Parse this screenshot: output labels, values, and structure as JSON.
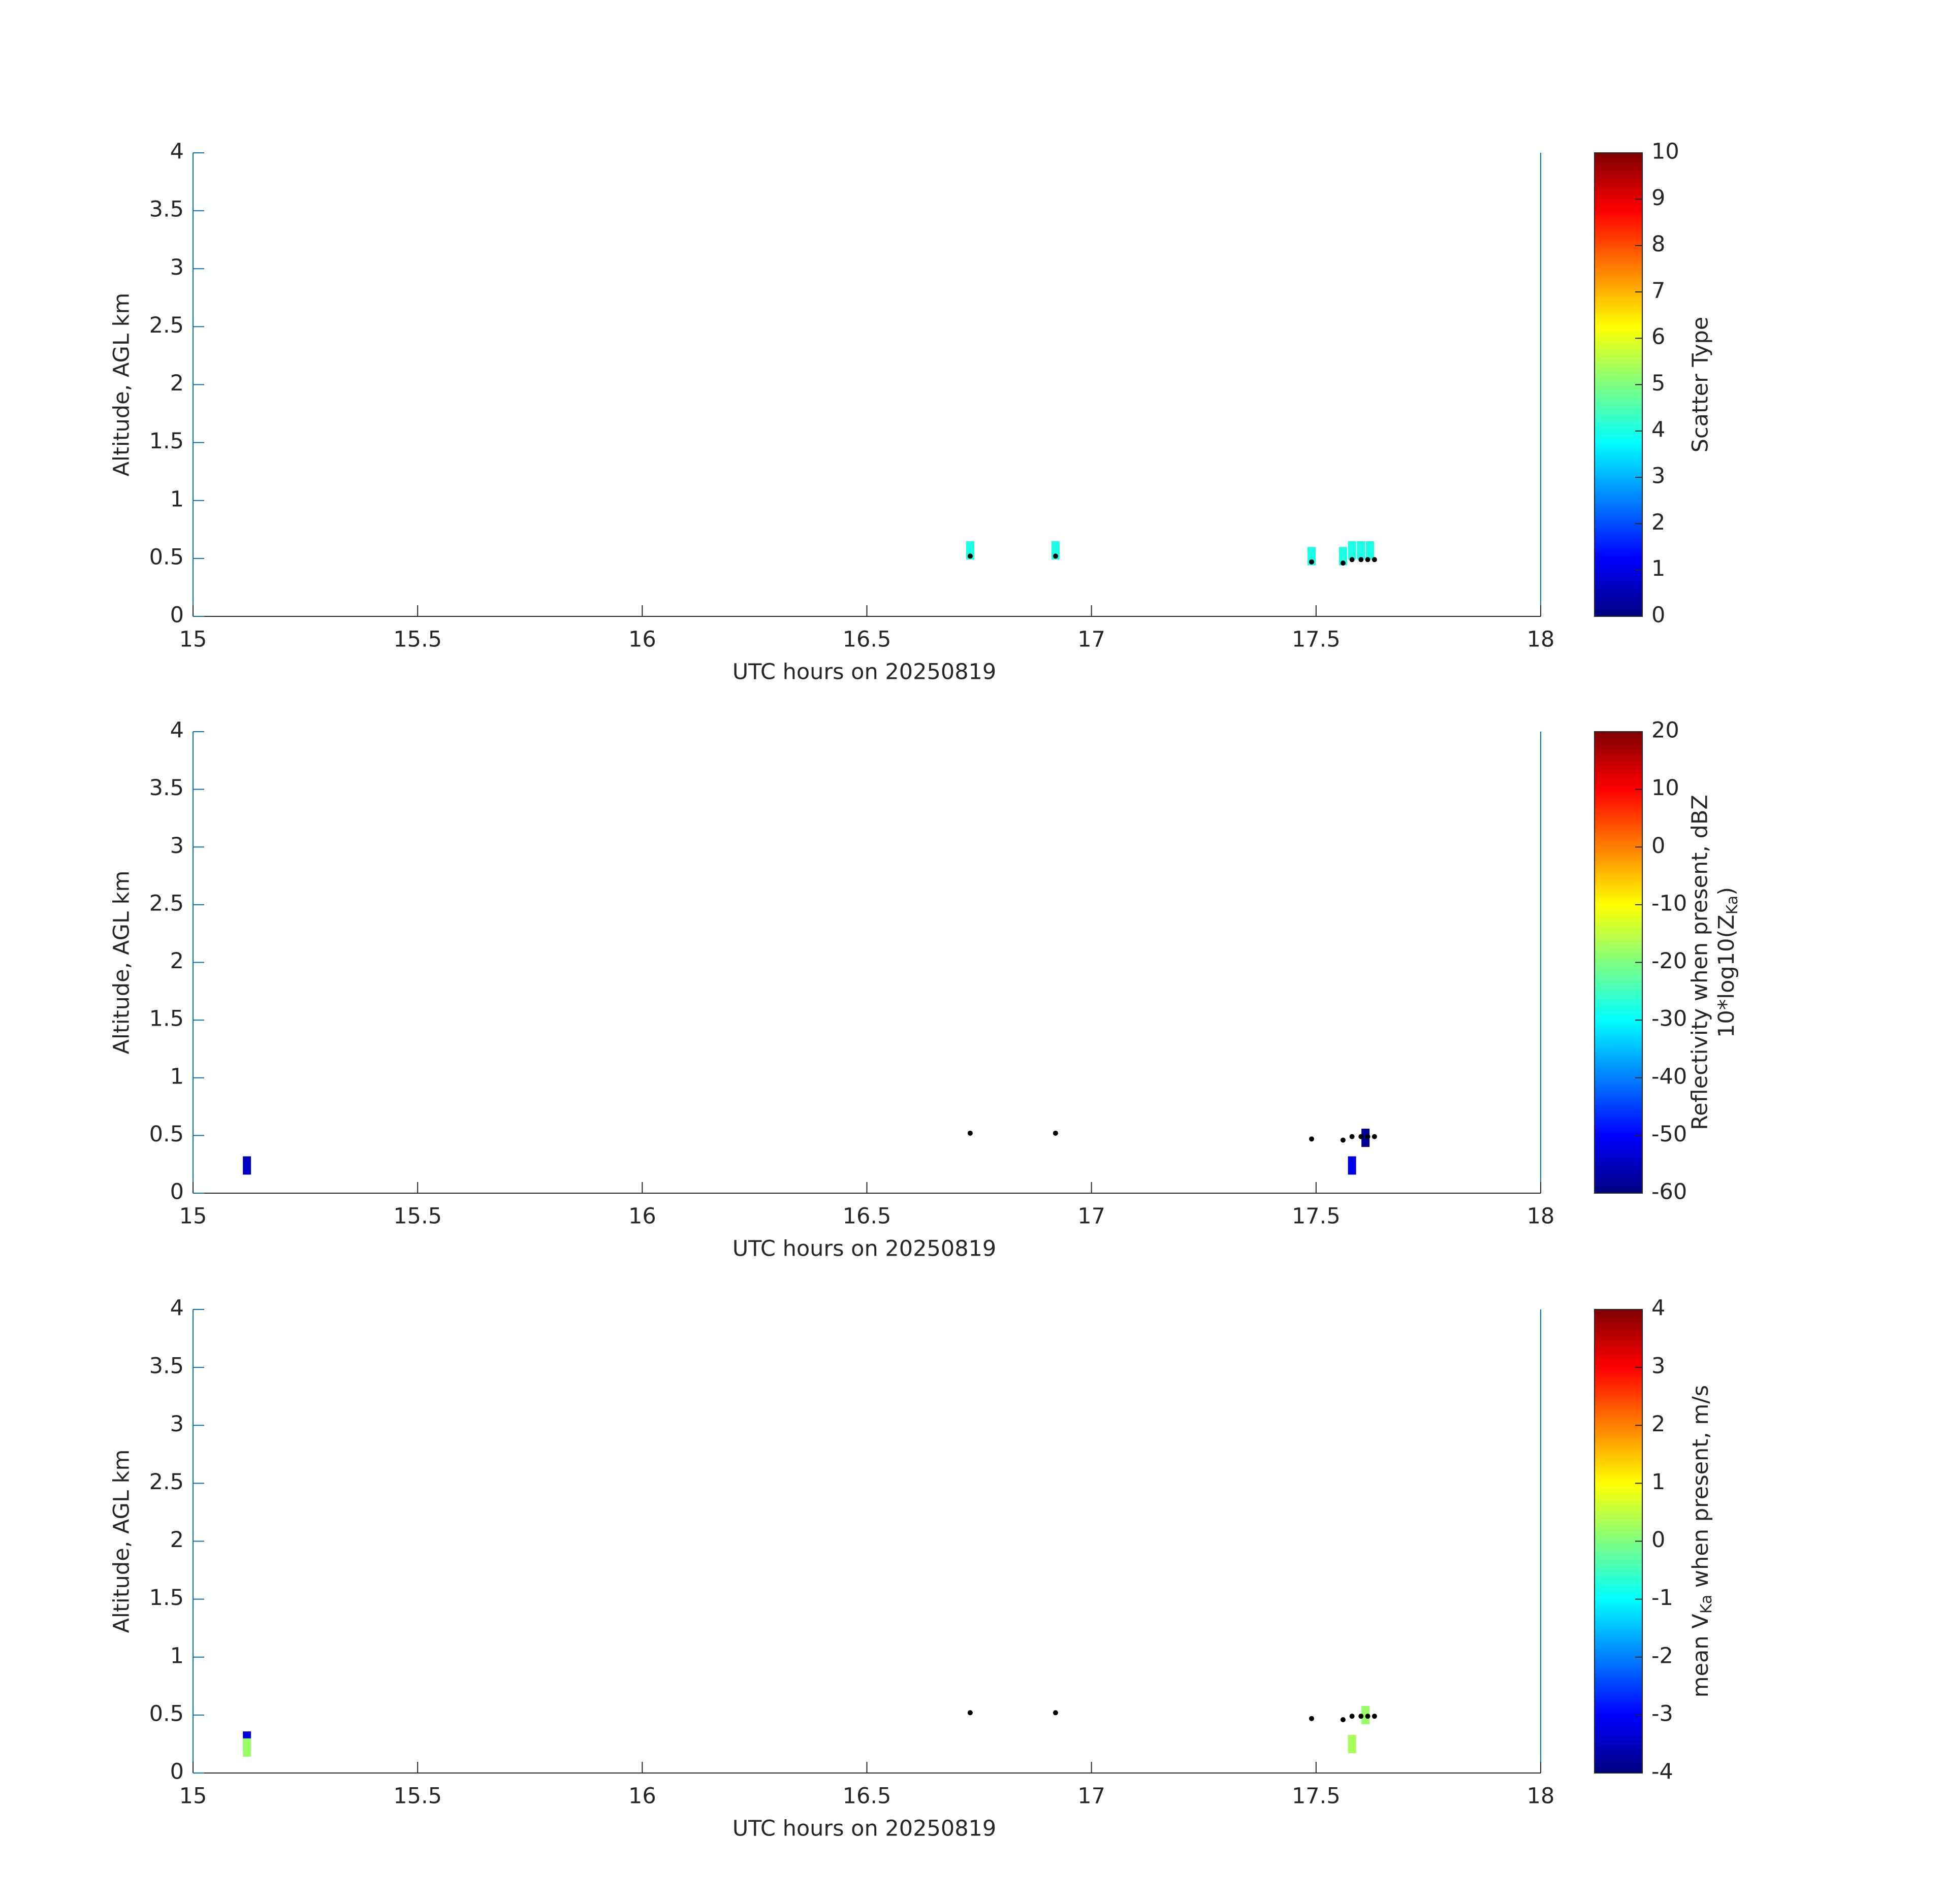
{
  "chart_data": [
    {
      "type": "cells",
      "xlabel": "UTC hours on 20250819",
      "ylabel": "Altitude, AGL km",
      "xlim": [
        15,
        18
      ],
      "ylim": [
        0,
        4
      ],
      "xticks": [
        15,
        15.5,
        16,
        16.5,
        17,
        17.5,
        18
      ],
      "yticks": [
        0,
        0.5,
        1,
        1.5,
        2,
        2.5,
        3,
        3.5,
        4
      ],
      "colormap": "jet",
      "clim": [
        0,
        10
      ],
      "cticks": [
        0,
        1,
        2,
        3,
        4,
        5,
        6,
        7,
        8,
        9,
        10
      ],
      "clabel": [
        "Scatter Type"
      ],
      "cells": {
        "x": [
          16.73,
          16.92,
          17.49,
          17.56,
          17.58,
          17.6,
          17.62
        ],
        "y": [
          0.57,
          0.57,
          0.52,
          0.52,
          0.57,
          0.57,
          0.57
        ],
        "values": [
          4,
          4,
          4,
          4,
          4,
          4,
          4
        ]
      },
      "points": {
        "color": "#000000",
        "x": [
          16.73,
          16.92,
          17.49,
          17.56,
          17.58,
          17.6,
          17.615,
          17.63
        ],
        "y": [
          0.52,
          0.52,
          0.47,
          0.46,
          0.49,
          0.49,
          0.49,
          0.49
        ]
      }
    },
    {
      "type": "cells",
      "xlabel": "UTC hours on 20250819",
      "ylabel": "Altitude, AGL km",
      "xlim": [
        15,
        18
      ],
      "ylim": [
        0,
        4
      ],
      "xticks": [
        15,
        15.5,
        16,
        16.5,
        17,
        17.5,
        18
      ],
      "yticks": [
        0,
        0.5,
        1,
        1.5,
        2,
        2.5,
        3,
        3.5,
        4
      ],
      "colormap": "jet",
      "clim": [
        -60,
        20
      ],
      "cticks": [
        -60,
        -50,
        -40,
        -30,
        -20,
        -10,
        0,
        10,
        20
      ],
      "clabel": [
        "Reflectivity when present, dBZ",
        [
          "10*log10(Z",
          "Ka",
          ")"
        ]
      ],
      "cells": {
        "x": [
          15.12,
          17.58,
          17.61
        ],
        "y": [
          0.24,
          0.24,
          0.48
        ],
        "values": [
          -55,
          -52,
          -58
        ]
      },
      "points": {
        "color": "#000000",
        "x": [
          16.73,
          16.92,
          17.49,
          17.56,
          17.58,
          17.6,
          17.615,
          17.63
        ],
        "y": [
          0.52,
          0.52,
          0.47,
          0.46,
          0.49,
          0.49,
          0.49,
          0.49
        ]
      }
    },
    {
      "type": "cells",
      "xlabel": "UTC hours on 20250819",
      "ylabel": "Altitude, AGL km",
      "xlim": [
        15,
        18
      ],
      "ylim": [
        0,
        4
      ],
      "xticks": [
        15,
        15.5,
        16,
        16.5,
        17,
        17.5,
        18
      ],
      "yticks": [
        0,
        0.5,
        1,
        1.5,
        2,
        2.5,
        3,
        3.5,
        4
      ],
      "colormap": "jet",
      "clim": [
        -4,
        4
      ],
      "cticks": [
        -4,
        -3,
        -2,
        -1,
        0,
        1,
        2,
        3,
        4
      ],
      "clabel": [
        [
          "mean V",
          "Ka",
          " when present, m/s"
        ]
      ],
      "cells": {
        "x": [
          15.12,
          15.12,
          17.58,
          17.61
        ],
        "y": [
          0.28,
          0.22,
          0.25,
          0.5
        ],
        "values": [
          -3.3,
          0.2,
          0.3,
          0.2
        ]
      },
      "points": {
        "color": "#000000",
        "x": [
          16.73,
          16.92,
          17.49,
          17.56,
          17.58,
          17.6,
          17.615,
          17.63
        ],
        "y": [
          0.52,
          0.52,
          0.47,
          0.46,
          0.49,
          0.49,
          0.49,
          0.49
        ]
      }
    }
  ]
}
